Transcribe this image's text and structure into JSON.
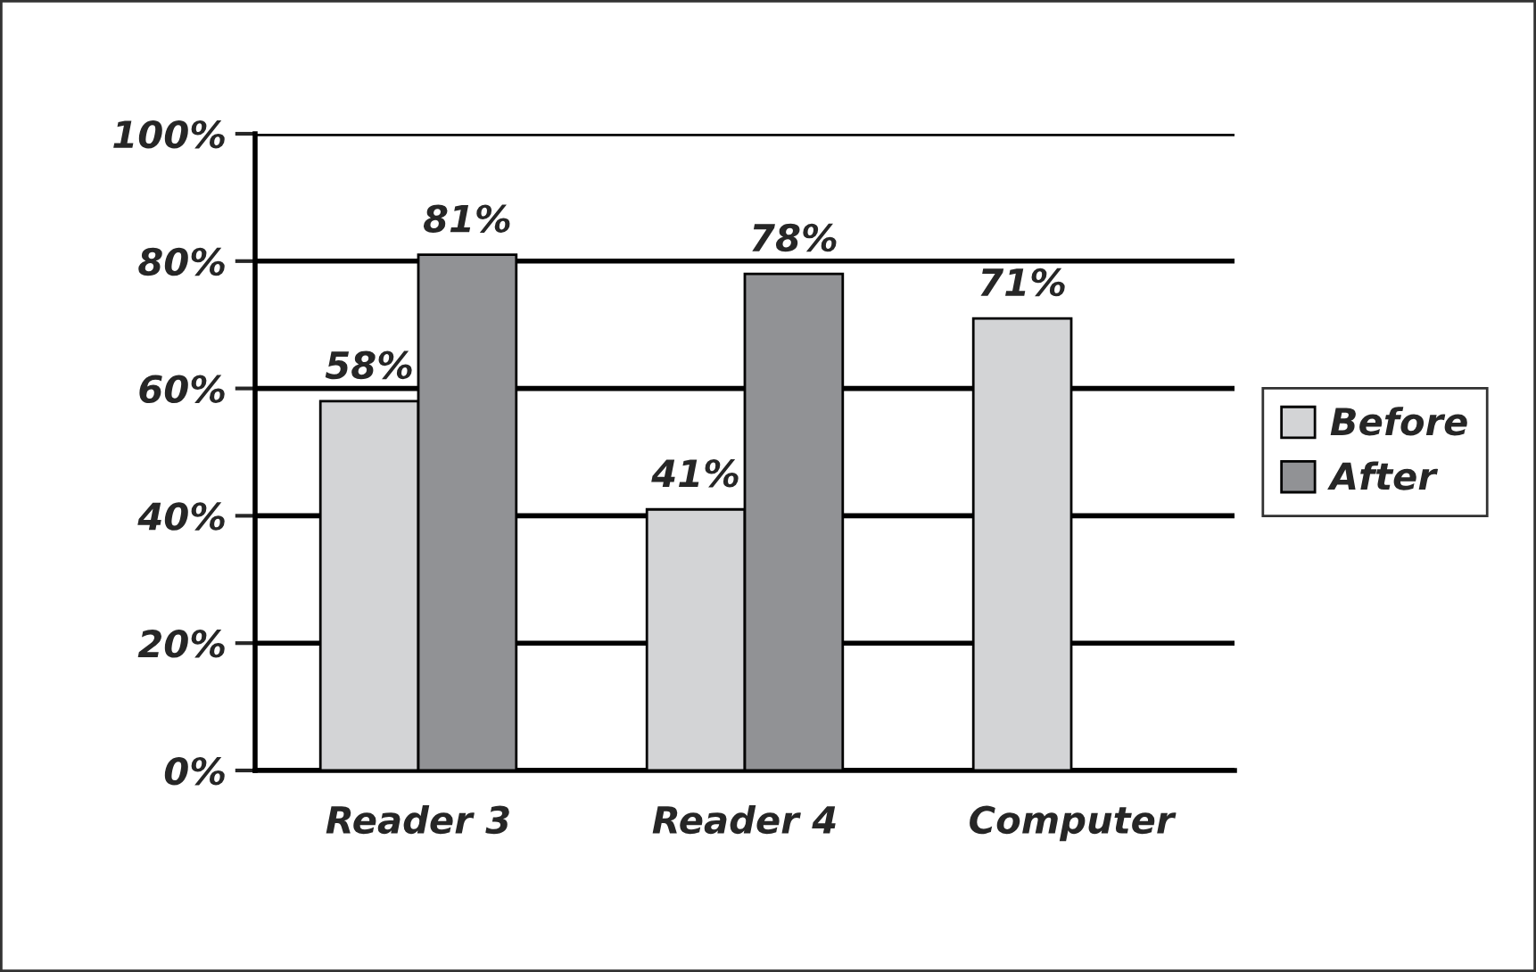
{
  "chart_data": {
    "type": "bar",
    "categories": [
      "Reader 3",
      "Reader 4",
      "Computer"
    ],
    "series": [
      {
        "name": "Before",
        "color": "#d3d4d6",
        "values": [
          58,
          41,
          71
        ],
        "value_labels": [
          "58%",
          "41%",
          "71%"
        ]
      },
      {
        "name": "After",
        "color": "#919295",
        "values": [
          81,
          78,
          null
        ],
        "value_labels": [
          "81%",
          "78%",
          null
        ]
      }
    ],
    "ylim": [
      0,
      100
    ],
    "yticks": [
      {
        "value": 0,
        "label": "0%"
      },
      {
        "value": 20,
        "label": "20%"
      },
      {
        "value": 40,
        "label": "40%"
      },
      {
        "value": 60,
        "label": "60%"
      },
      {
        "value": 80,
        "label": "80%"
      },
      {
        "value": 100,
        "label": "100%"
      }
    ],
    "grid": "y",
    "legend": "right"
  }
}
